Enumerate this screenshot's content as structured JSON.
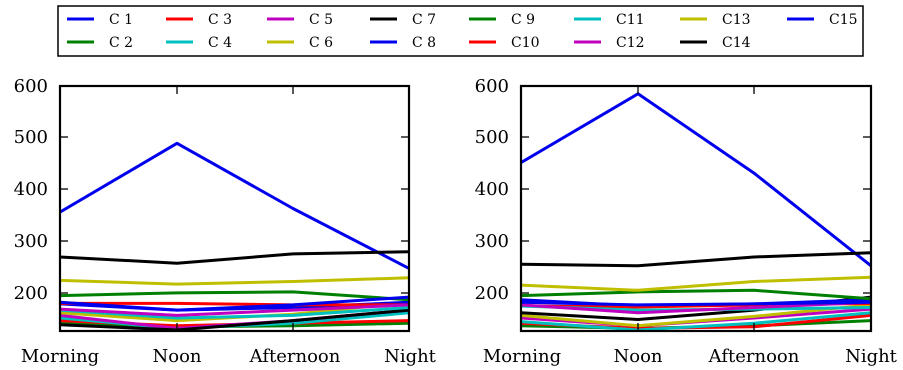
{
  "chart_data": {
    "type": "line",
    "legend": {
      "placement": "top",
      "entries": [
        {
          "name": "C 1",
          "color": "#0000ee"
        },
        {
          "name": "C 2",
          "color": "#008000"
        },
        {
          "name": "C 3",
          "color": "#ff0000"
        },
        {
          "name": "C 4",
          "color": "#00bfbf"
        },
        {
          "name": "C 5",
          "color": "#bf00bf"
        },
        {
          "name": "C 6",
          "color": "#bfbf00"
        },
        {
          "name": "C 7",
          "color": "#000000"
        },
        {
          "name": "C 8",
          "color": "#0000ee"
        },
        {
          "name": "C 9",
          "color": "#008000"
        },
        {
          "name": "C10",
          "color": "#ff0000"
        },
        {
          "name": "C11",
          "color": "#00bfbf"
        },
        {
          "name": "C12",
          "color": "#bf00bf"
        },
        {
          "name": "C13",
          "color": "#bfbf00"
        },
        {
          "name": "C14",
          "color": "#000000"
        },
        {
          "name": "C15",
          "color": "#0000ee"
        }
      ]
    },
    "panels": [
      {
        "categories": [
          "Morning",
          "Noon",
          "Afternoon",
          "Night"
        ],
        "ylim": [
          130,
          600
        ],
        "yticks": [
          "200",
          "300",
          "400",
          "500",
          "600"
        ],
        "grid": false,
        "series": [
          {
            "name": "C 1",
            "values": [
              358,
              490,
              365,
              250
            ]
          },
          {
            "name": "C 2",
            "values": [
              145,
              138,
              140,
              145
            ]
          },
          {
            "name": "C 3",
            "values": [
              150,
              140,
              145,
              150
            ]
          },
          {
            "name": "C 4",
            "values": [
              155,
              135,
              145,
              165
            ]
          },
          {
            "name": "C 5",
            "values": [
              160,
              135,
              150,
              170
            ]
          },
          {
            "name": "C 6",
            "values": [
              165,
              150,
              162,
              185
            ]
          },
          {
            "name": "C 7",
            "values": [
              142,
              132,
              150,
              170
            ]
          },
          {
            "name": "C 8",
            "values": [
              182,
              170,
              175,
              185
            ]
          },
          {
            "name": "C 9",
            "values": [
              198,
              203,
              205,
              190
            ]
          },
          {
            "name": "C10",
            "values": [
              183,
              183,
              180,
              180
            ]
          },
          {
            "name": "C11",
            "values": [
              170,
              155,
              160,
              175
            ]
          },
          {
            "name": "C12",
            "values": [
              172,
              160,
              170,
              180
            ]
          },
          {
            "name": "C13",
            "values": [
              227,
              220,
              225,
              232
            ]
          },
          {
            "name": "C14",
            "values": [
              272,
              260,
              278,
              282
            ]
          },
          {
            "name": "C15",
            "values": [
              185,
              170,
              180,
              195
            ]
          }
        ]
      },
      {
        "categories": [
          "Morning",
          "Noon",
          "Afternoon",
          "Night"
        ],
        "ylim": [
          130,
          600
        ],
        "yticks": [
          "200",
          "300",
          "400",
          "500",
          "600"
        ],
        "grid": false,
        "series": [
          {
            "name": "C 1",
            "values": [
              453,
              585,
              433,
              255
            ]
          },
          {
            "name": "C 2",
            "values": [
              140,
              135,
              140,
              150
            ]
          },
          {
            "name": "C 3",
            "values": [
              145,
              135,
              138,
              160
            ]
          },
          {
            "name": "C 4",
            "values": [
              148,
              132,
              145,
              165
            ]
          },
          {
            "name": "C 5",
            "values": [
              155,
              140,
              155,
              172
            ]
          },
          {
            "name": "C 6",
            "values": [
              160,
              140,
              158,
              180
            ]
          },
          {
            "name": "C 7",
            "values": [
              165,
              152,
              170,
              195
            ]
          },
          {
            "name": "C 8",
            "values": [
              190,
              178,
              182,
              190
            ]
          },
          {
            "name": "C 9",
            "values": [
              198,
              205,
              208,
              192
            ]
          },
          {
            "name": "C10",
            "values": [
              178,
              176,
              180,
              183
            ]
          },
          {
            "name": "C11",
            "values": [
              178,
              170,
              172,
              175
            ]
          },
          {
            "name": "C12",
            "values": [
              180,
              165,
              175,
              185
            ]
          },
          {
            "name": "C13",
            "values": [
              218,
              208,
              225,
              233
            ]
          },
          {
            "name": "C14",
            "values": [
              258,
              255,
              272,
              280
            ]
          },
          {
            "name": "C15",
            "values": [
              185,
              180,
              182,
              185
            ]
          }
        ]
      }
    ]
  }
}
